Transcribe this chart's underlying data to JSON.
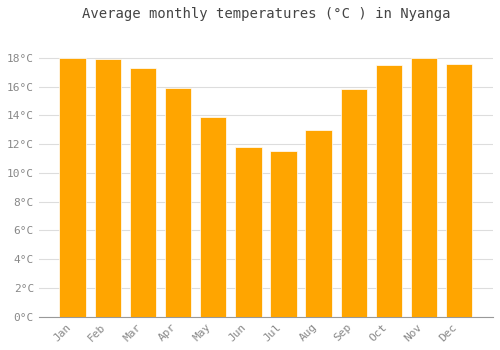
{
  "title": "Average monthly temperatures (°C ) in Nyanga",
  "months": [
    "Jan",
    "Feb",
    "Mar",
    "Apr",
    "May",
    "Jun",
    "Jul",
    "Aug",
    "Sep",
    "Oct",
    "Nov",
    "Dec"
  ],
  "values": [
    18.0,
    17.9,
    17.3,
    15.9,
    13.9,
    11.8,
    11.5,
    13.0,
    15.8,
    17.5,
    18.0,
    17.6
  ],
  "bar_color": "#FFA500",
  "bar_edge_color": "#FFFFFF",
  "background_color": "#FFFFFF",
  "grid_color": "#DDDDDD",
  "ylim": [
    0,
    20
  ],
  "yticks": [
    0,
    2,
    4,
    6,
    8,
    10,
    12,
    14,
    16,
    18
  ],
  "ytick_labels": [
    "0°C",
    "2°C",
    "4°C",
    "6°C",
    "8°C",
    "10°C",
    "12°C",
    "14°C",
    "16°C",
    "18°C"
  ],
  "title_fontsize": 10,
  "tick_fontsize": 8,
  "tick_font_color": "#888888",
  "title_font_color": "#444444",
  "bar_width": 0.75
}
